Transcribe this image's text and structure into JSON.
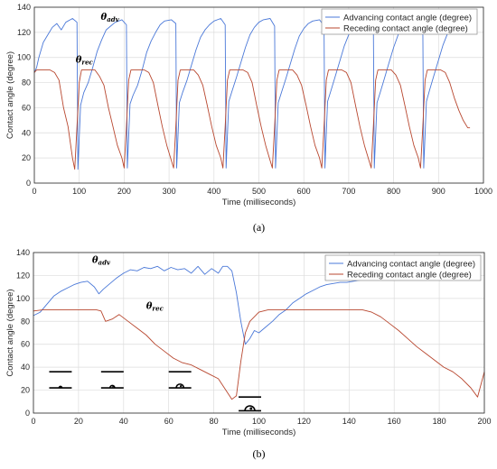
{
  "chart_data": [
    {
      "type": "line",
      "panel_label": "(a)",
      "xlabel": "Time (milliseconds)",
      "ylabel": "Contact angle (degree)",
      "xlim": [
        0,
        1000
      ],
      "ylim": [
        0,
        140
      ],
      "xticks": [
        0,
        100,
        200,
        300,
        400,
        500,
        600,
        700,
        800,
        900,
        1000
      ],
      "yticks": [
        0,
        20,
        40,
        60,
        80,
        100,
        120,
        140
      ],
      "grid": true,
      "legend_position": "top-right",
      "annotations": [
        {
          "symbol": "θ",
          "sub": "adv",
          "x": 148,
          "y": 130
        },
        {
          "symbol": "θ",
          "sub": "rec",
          "x": 92,
          "y": 96
        }
      ],
      "series": [
        {
          "name": "Advancing contact angle (degree)",
          "color": "#4a78d8",
          "x": [
            0,
            5,
            10,
            20,
            30,
            40,
            50,
            60,
            70,
            85,
            95,
            97,
            103,
            110,
            120,
            130,
            140,
            150,
            160,
            170,
            180,
            195,
            205,
            207,
            213,
            220,
            230,
            240,
            250,
            260,
            270,
            280,
            290,
            305,
            315,
            317,
            323,
            330,
            340,
            350,
            360,
            370,
            380,
            390,
            400,
            415,
            425,
            427,
            433,
            440,
            450,
            460,
            470,
            480,
            490,
            500,
            510,
            525,
            535,
            537,
            543,
            550,
            560,
            570,
            580,
            590,
            600,
            610,
            620,
            635,
            645,
            647,
            653,
            660,
            670,
            680,
            690,
            700,
            710,
            720,
            730,
            745,
            755,
            757,
            763,
            770,
            780,
            790,
            800,
            810,
            820,
            830,
            840,
            855,
            865,
            867,
            873,
            880,
            890,
            900,
            910,
            920,
            930,
            940,
            950,
            965,
            975
          ],
          "y": [
            88,
            92,
            100,
            112,
            118,
            124,
            127,
            122,
            128,
            131,
            128,
            11,
            62,
            72,
            80,
            92,
            105,
            114,
            122,
            125,
            128,
            130,
            126,
            12,
            63,
            70,
            78,
            90,
            104,
            113,
            120,
            126,
            129,
            130,
            127,
            12,
            64,
            72,
            82,
            94,
            106,
            116,
            122,
            126,
            129,
            131,
            126,
            12,
            65,
            73,
            84,
            96,
            108,
            118,
            124,
            128,
            130,
            131,
            125,
            12,
            64,
            72,
            83,
            95,
            107,
            117,
            123,
            127,
            129,
            130,
            125,
            12,
            65,
            73,
            85,
            97,
            109,
            118,
            124,
            128,
            130,
            131,
            124,
            12,
            64,
            72,
            84,
            96,
            108,
            118,
            124,
            128,
            130,
            131,
            124,
            12,
            65,
            74,
            86,
            98,
            110,
            119,
            125,
            128,
            130,
            131,
            126
          ]
        },
        {
          "name": "Receding contact angle (degree)",
          "color": "#b8472f",
          "x": [
            0,
            5,
            15,
            25,
            35,
            45,
            55,
            65,
            75,
            85,
            90,
            95,
            100,
            105,
            115,
            125,
            135,
            145,
            155,
            165,
            175,
            185,
            195,
            200,
            205,
            210,
            215,
            225,
            235,
            245,
            255,
            265,
            275,
            285,
            295,
            305,
            310,
            315,
            320,
            325,
            335,
            345,
            355,
            365,
            375,
            385,
            395,
            405,
            415,
            420,
            425,
            430,
            435,
            445,
            455,
            465,
            475,
            485,
            495,
            505,
            515,
            525,
            530,
            535,
            540,
            545,
            555,
            565,
            575,
            585,
            595,
            605,
            615,
            625,
            635,
            640,
            645,
            650,
            655,
            665,
            675,
            685,
            695,
            705,
            715,
            725,
            735,
            745,
            750,
            755,
            760,
            765,
            775,
            785,
            795,
            805,
            815,
            825,
            835,
            845,
            855,
            860,
            865,
            870,
            875,
            885,
            895,
            905,
            915,
            925,
            935,
            945,
            955,
            965,
            970
          ],
          "y": [
            88,
            90,
            90,
            90,
            90,
            88,
            82,
            60,
            45,
            20,
            11,
            45,
            80,
            90,
            90,
            90,
            90,
            85,
            78,
            60,
            45,
            30,
            20,
            12,
            45,
            82,
            90,
            90,
            90,
            90,
            88,
            80,
            62,
            45,
            30,
            18,
            12,
            45,
            82,
            90,
            90,
            90,
            90,
            86,
            78,
            62,
            45,
            30,
            20,
            12,
            45,
            82,
            90,
            90,
            90,
            90,
            88,
            80,
            62,
            45,
            30,
            18,
            12,
            45,
            82,
            90,
            90,
            90,
            90,
            86,
            78,
            62,
            45,
            30,
            20,
            12,
            45,
            82,
            90,
            90,
            90,
            90,
            88,
            80,
            62,
            45,
            30,
            18,
            12,
            45,
            82,
            90,
            90,
            90,
            90,
            86,
            78,
            62,
            45,
            30,
            20,
            12,
            45,
            82,
            90,
            90,
            90,
            90,
            88,
            80,
            68,
            58,
            50,
            44,
            44
          ]
        }
      ]
    },
    {
      "type": "line",
      "panel_label": "(b)",
      "xlabel": "Time (milliseconds)",
      "ylabel": "Contact angle (degree)",
      "xlim": [
        0,
        200
      ],
      "ylim": [
        0,
        140
      ],
      "xticks": [
        0,
        20,
        40,
        60,
        80,
        100,
        120,
        140,
        160,
        180,
        200
      ],
      "yticks": [
        0,
        20,
        40,
        60,
        80,
        100,
        120,
        140
      ],
      "grid": true,
      "legend_position": "top-right",
      "annotations": [
        {
          "symbol": "θ",
          "sub": "adv",
          "x": 26,
          "y": 131
        },
        {
          "symbol": "θ",
          "sub": "rec",
          "x": 50,
          "y": 91
        }
      ],
      "series": [
        {
          "name": "Advancing contact angle (degree)",
          "color": "#4a78d8",
          "x": [
            0,
            3,
            6,
            9,
            12,
            15,
            18,
            21,
            24,
            27,
            29,
            31,
            34,
            37,
            40,
            43,
            46,
            49,
            52,
            55,
            58,
            61,
            64,
            67,
            70,
            73,
            76,
            79,
            82,
            84,
            86,
            88,
            90,
            92,
            94,
            96,
            98,
            100,
            103,
            106,
            109,
            112,
            115,
            118,
            121,
            124,
            127,
            130,
            133,
            136,
            139,
            142,
            145,
            148,
            151
          ],
          "y": [
            85,
            88,
            95,
            102,
            106,
            109,
            112,
            114,
            115,
            110,
            104,
            108,
            113,
            118,
            122,
            125,
            124,
            127,
            126,
            128,
            124,
            127,
            125,
            126,
            122,
            128,
            121,
            126,
            122,
            128,
            128,
            124,
            105,
            80,
            60,
            65,
            72,
            70,
            75,
            80,
            86,
            90,
            96,
            100,
            104,
            107,
            110,
            112,
            113,
            114,
            114,
            115,
            116,
            118,
            119
          ]
        },
        {
          "name": "Receding contact angle (degree)",
          "color": "#b8472f",
          "x": [
            0,
            4,
            8,
            12,
            16,
            20,
            24,
            28,
            30,
            32,
            35,
            38,
            42,
            46,
            50,
            54,
            58,
            62,
            66,
            70,
            74,
            78,
            82,
            84,
            86,
            88,
            90,
            92,
            94,
            96,
            98,
            100,
            104,
            110,
            116,
            122,
            128,
            134,
            140,
            146,
            150,
            154,
            158,
            162,
            166,
            170,
            174,
            178,
            182,
            186,
            190,
            194,
            197,
            200
          ],
          "y": [
            89,
            90,
            90,
            90,
            90,
            90,
            90,
            90,
            89,
            80,
            82,
            86,
            80,
            74,
            68,
            60,
            54,
            48,
            44,
            42,
            38,
            34,
            30,
            24,
            18,
            12,
            15,
            45,
            70,
            80,
            84,
            88,
            90,
            90,
            90,
            90,
            90,
            90,
            90,
            90,
            88,
            84,
            78,
            72,
            65,
            58,
            52,
            46,
            40,
            36,
            30,
            22,
            14,
            36
          ]
        }
      ]
    }
  ]
}
